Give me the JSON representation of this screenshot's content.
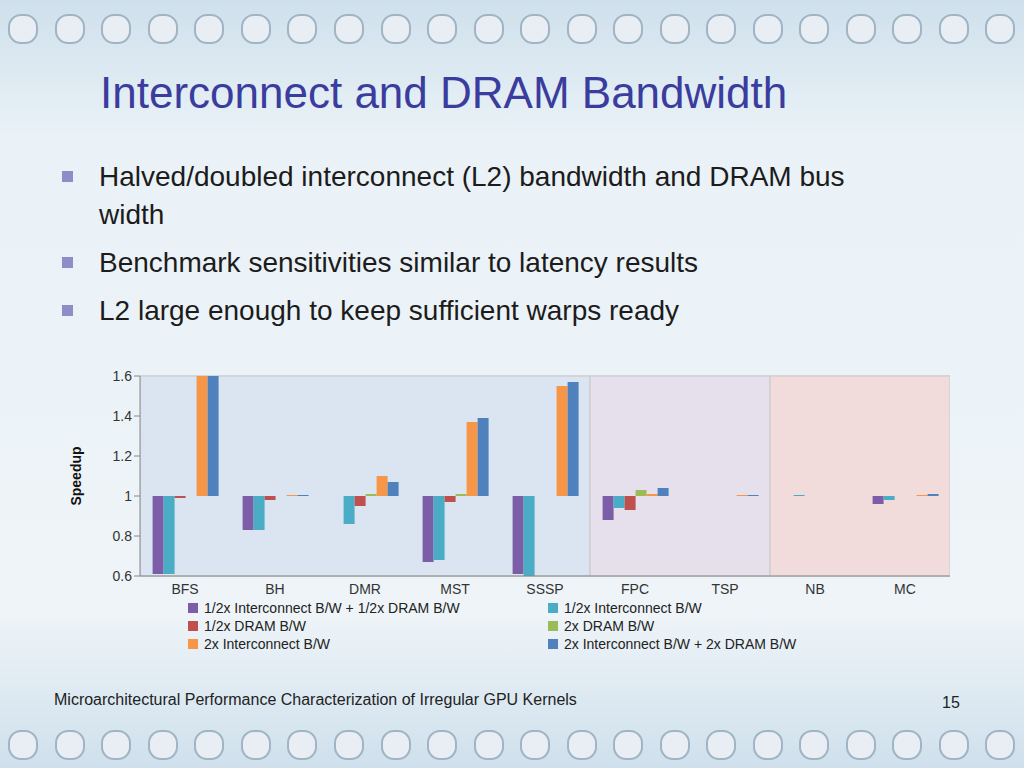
{
  "slide": {
    "title": "Interconnect and DRAM Bandwidth",
    "bullets": [
      "Halved/doubled interconnect (L2) bandwidth and DRAM bus width",
      "Benchmark sensitivities similar to latency results",
      "L2 large enough to keep sufficient warps ready"
    ],
    "footer": "Microarchitectural Performance Characterization of Irregular GPU Kernels",
    "page": 15
  },
  "chart_data": {
    "type": "bar",
    "categories": [
      "BFS",
      "BH",
      "DMR",
      "MST",
      "SSSP",
      "FPC",
      "TSP",
      "NB",
      "MC"
    ],
    "series": [
      {
        "name": "1/2x Interconnect B/W + 1/2x DRAM B/W",
        "color": "#7b5ea7",
        "values": [
          0.61,
          0.83,
          null,
          0.67,
          0.61,
          0.88,
          1.0,
          1.0,
          0.96
        ]
      },
      {
        "name": "1/2x Interconnect B/W",
        "color": "#4bacc6",
        "values": [
          0.61,
          0.83,
          0.86,
          0.68,
          0.6,
          0.94,
          1.0,
          1.005,
          0.98
        ]
      },
      {
        "name": "1/2x DRAM B/W",
        "color": "#c0504d",
        "values": [
          0.99,
          0.98,
          0.95,
          0.97,
          1.0,
          0.93,
          1.0,
          1.0,
          1.0
        ]
      },
      {
        "name": "2x DRAM B/W",
        "color": "#9bbb59",
        "values": [
          1.0,
          1.0,
          1.01,
          1.01,
          1.0,
          1.03,
          1.0,
          1.0,
          1.0
        ]
      },
      {
        "name": "2x Interconnect B/W",
        "color": "#f79646",
        "values": [
          1.6,
          1.005,
          1.1,
          1.37,
          1.55,
          1.01,
          1.005,
          1.0,
          1.005
        ]
      },
      {
        "name": "2x Interconnect B/W + 2x DRAM B/W",
        "color": "#4f81bd",
        "values": [
          1.6,
          1.005,
          1.07,
          1.39,
          1.57,
          1.04,
          1.005,
          1.0,
          1.01
        ]
      }
    ],
    "ylim": [
      0.6,
      1.6
    ],
    "yticks": [
      0.6,
      0.8,
      1,
      1.2,
      1.4,
      1.6
    ],
    "y_label": "Speedup",
    "baseline": 1,
    "grid": true,
    "legend": "bottom"
  }
}
